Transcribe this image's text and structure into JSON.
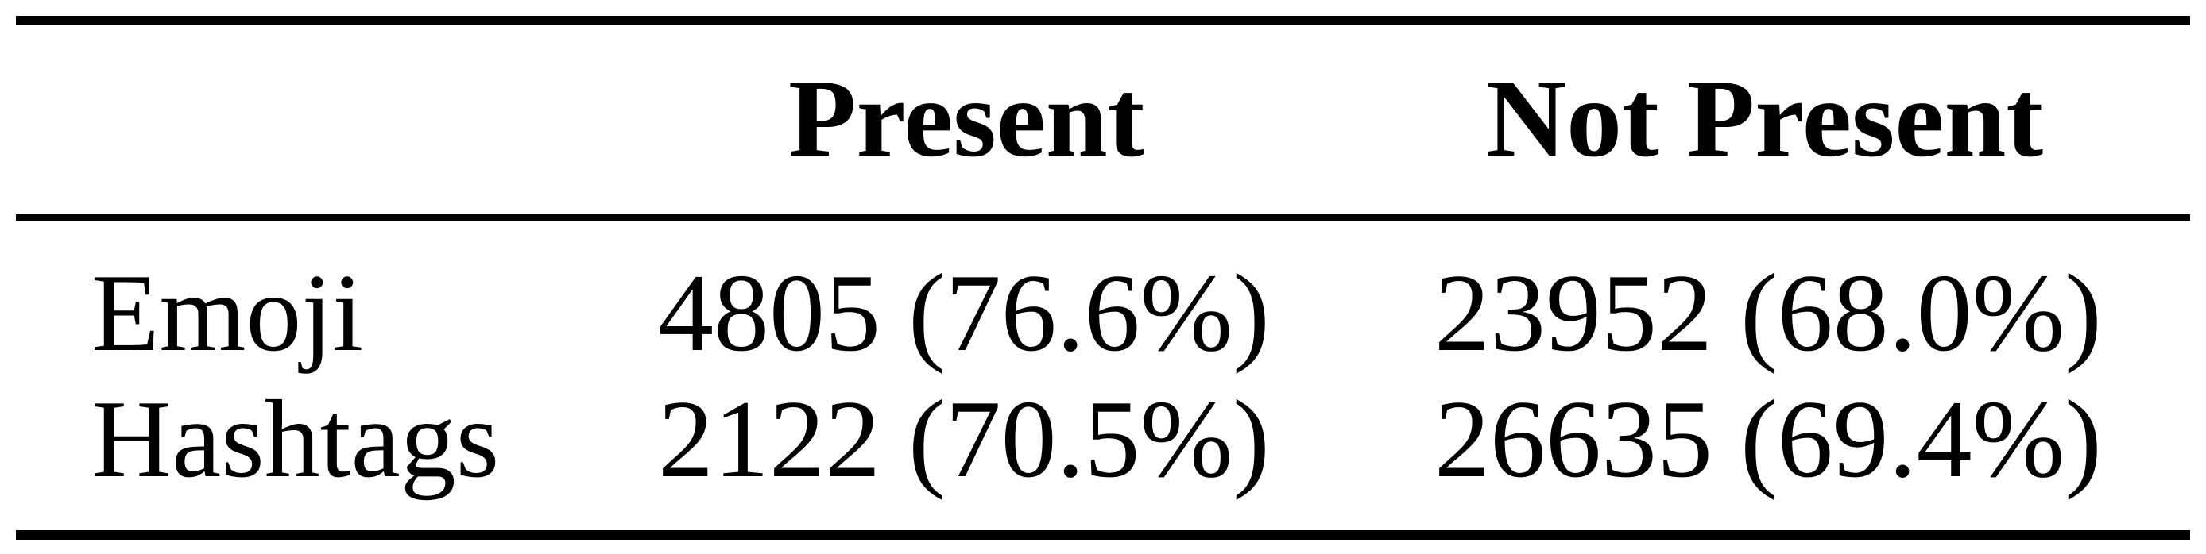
{
  "table": {
    "headers": [
      "",
      "Present",
      "Not Present"
    ],
    "rows": [
      {
        "label": "Emoji",
        "present": "4805 (76.6%)",
        "not_present": "23952 (68.0%)"
      },
      {
        "label": "Hashtags",
        "present": "2122 (70.5%)",
        "not_present": "26635 (69.4%)"
      }
    ]
  }
}
